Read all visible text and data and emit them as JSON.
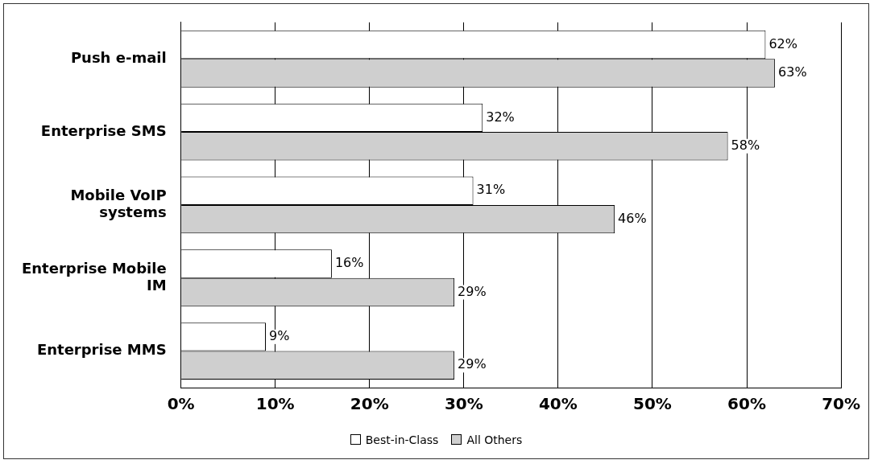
{
  "chart_data": {
    "type": "bar",
    "orientation": "horizontal",
    "categories": [
      "Push e-mail",
      "Enterprise SMS",
      "Mobile VoIP systems",
      "Enterprise Mobile IM",
      "Enterprise MMS"
    ],
    "series": [
      {
        "name": "Best-in-Class",
        "color": "#ffffff",
        "values": [
          62,
          32,
          31,
          16,
          9
        ],
        "value_labels": [
          "62%",
          "32%",
          "31%",
          "16%",
          "9%"
        ]
      },
      {
        "name": "All Others",
        "color": "#cfcfcf",
        "values": [
          63,
          58,
          46,
          29,
          29
        ],
        "value_labels": [
          "63%",
          "58%",
          "46%",
          "29%",
          "29%"
        ]
      }
    ],
    "xlim": [
      0,
      70
    ],
    "xticks": [
      {
        "value": 0,
        "label": "0%"
      },
      {
        "value": 10,
        "label": "10%"
      },
      {
        "value": 20,
        "label": "20%"
      },
      {
        "value": 30,
        "label": "30%"
      },
      {
        "value": 40,
        "label": "40%"
      },
      {
        "value": 50,
        "label": "50%"
      },
      {
        "value": 60,
        "label": "60%"
      },
      {
        "value": 70,
        "label": "70%"
      }
    ],
    "grid": "x",
    "legend": "bottom"
  }
}
